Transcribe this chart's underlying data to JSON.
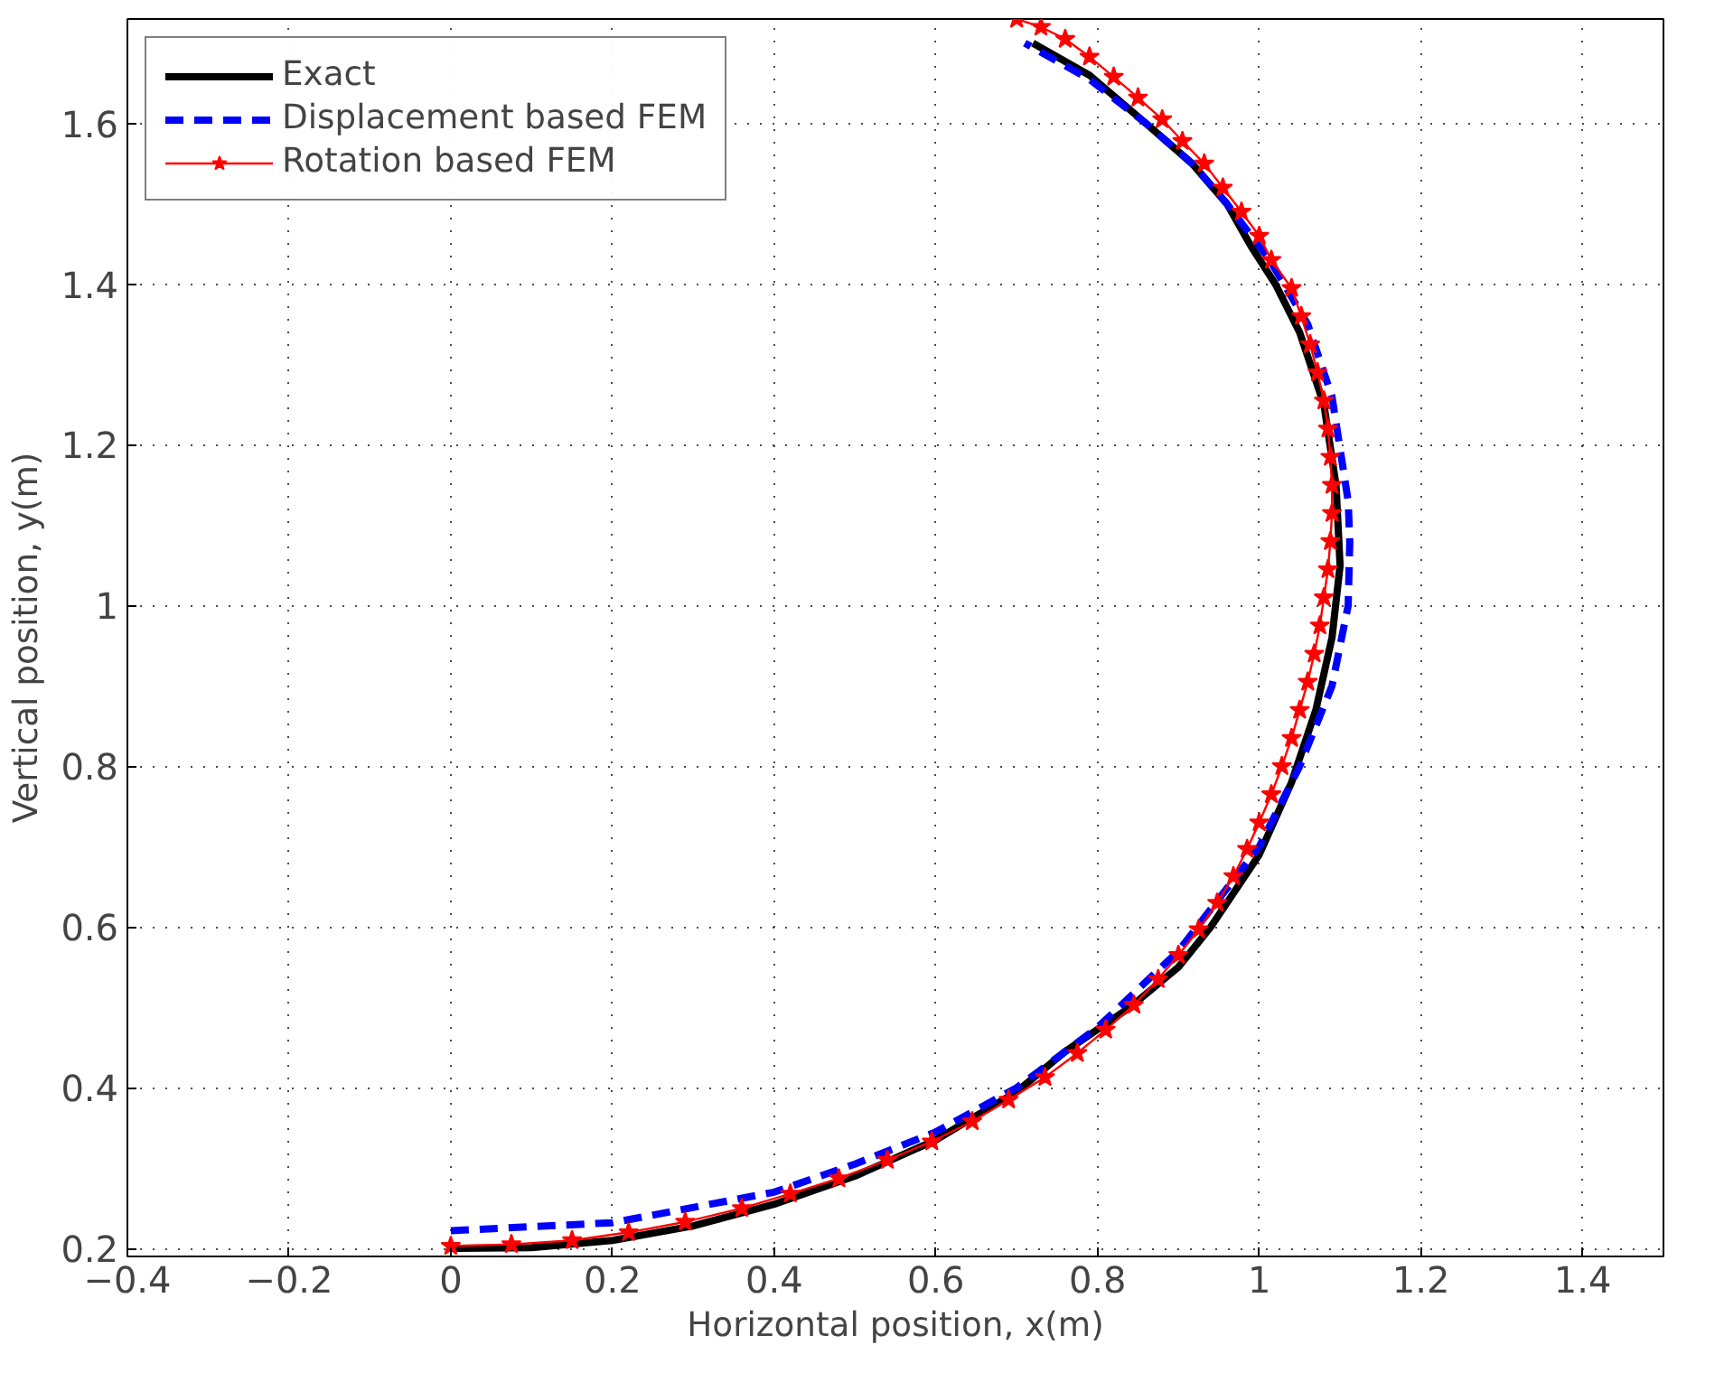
{
  "chart_data": {
    "type": "line",
    "xlabel": "Horizontal position, x(m)",
    "ylabel": "Vertical position, y(m)",
    "xlim": [
      -0.4,
      1.5
    ],
    "ylim": [
      0.19,
      1.73
    ],
    "xticks": [
      {
        "value": -0.4,
        "label": "−0.4"
      },
      {
        "value": -0.2,
        "label": "−0.2"
      },
      0,
      0.2,
      0.4,
      0.6,
      0.8,
      1,
      1.2,
      1.4
    ],
    "yticks": [
      0.2,
      0.4,
      0.6,
      0.8,
      1,
      1.2,
      1.4,
      1.6
    ],
    "grid": true,
    "legend": "top left",
    "series": [
      {
        "name": "Exact",
        "color": "#000000",
        "line_style": "solid",
        "marker": "none",
        "x": [
          0,
          0.1,
          0.2,
          0.3,
          0.4,
          0.5,
          0.6,
          0.7,
          0.76,
          0.84,
          0.9,
          0.94,
          1.0,
          1.04,
          1.07,
          1.09,
          1.1,
          1.095,
          1.08,
          1.05,
          1.02,
          0.99,
          0.96,
          0.917,
          0.86,
          0.79,
          0.72
        ],
        "values": [
          0.2,
          0.201,
          0.21,
          0.228,
          0.255,
          0.29,
          0.335,
          0.395,
          0.445,
          0.5,
          0.55,
          0.6,
          0.69,
          0.78,
          0.87,
          0.96,
          1.05,
          1.15,
          1.25,
          1.34,
          1.4,
          1.447,
          1.5,
          1.55,
          1.6,
          1.66,
          1.7
        ]
      },
      {
        "name": "Displacement based FEM",
        "color": "#0000ff",
        "line_style": "dashed",
        "marker": "none",
        "x": [
          0,
          0.2,
          0.4,
          0.5,
          0.6,
          0.7,
          0.8,
          0.9,
          1.0,
          1.05,
          1.09,
          1.11,
          1.112,
          1.11,
          1.09,
          1.06,
          1.013,
          0.96,
          0.917,
          0.86,
          0.79,
          0.71
        ],
        "values": [
          0.222,
          0.232,
          0.27,
          0.305,
          0.345,
          0.4,
          0.475,
          0.57,
          0.7,
          0.8,
          0.9,
          1.0,
          1.08,
          1.13,
          1.26,
          1.35,
          1.43,
          1.5,
          1.55,
          1.6,
          1.655,
          1.7
        ]
      },
      {
        "name": "Rotation based FEM",
        "color": "#ff0000",
        "line_style": "solid",
        "marker": "star",
        "x": [
          0,
          0.075,
          0.15,
          0.22,
          0.29,
          0.36,
          0.42,
          0.48,
          0.54,
          0.595,
          0.645,
          0.69,
          0.735,
          0.775,
          0.81,
          0.845,
          0.875,
          0.9,
          0.925,
          0.948,
          0.968,
          0.985,
          1.0,
          1.015,
          1.028,
          1.04,
          1.05,
          1.06,
          1.068,
          1.075,
          1.08,
          1.085,
          1.088,
          1.09,
          1.09,
          1.088,
          1.085,
          1.08,
          1.072,
          1.063,
          1.052,
          1.04,
          1.015,
          1.0,
          0.978,
          0.955,
          0.932,
          0.905,
          0.88,
          0.85,
          0.82,
          0.79,
          0.76,
          0.73,
          0.7
        ],
        "values": [
          0.203,
          0.205,
          0.21,
          0.22,
          0.233,
          0.25,
          0.268,
          0.287,
          0.31,
          0.333,
          0.358,
          0.385,
          0.413,
          0.443,
          0.472,
          0.503,
          0.535,
          0.565,
          0.597,
          0.63,
          0.663,
          0.697,
          0.73,
          0.765,
          0.8,
          0.835,
          0.87,
          0.905,
          0.94,
          0.975,
          1.01,
          1.045,
          1.08,
          1.115,
          1.15,
          1.185,
          1.22,
          1.255,
          1.29,
          1.325,
          1.36,
          1.395,
          1.43,
          1.46,
          1.49,
          1.52,
          1.55,
          1.578,
          1.605,
          1.632,
          1.658,
          1.683,
          1.705,
          1.72,
          1.73
        ]
      }
    ]
  }
}
